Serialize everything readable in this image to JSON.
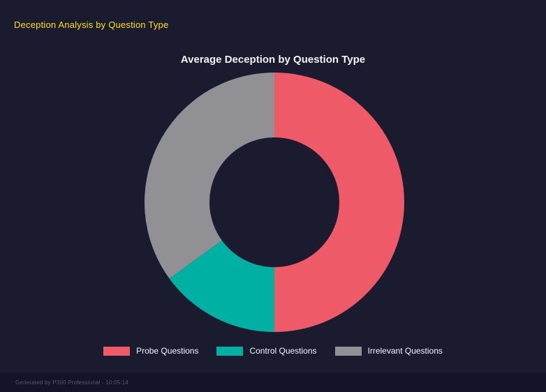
{
  "page": {
    "header": "Deception Analysis by Question Type",
    "footer": "Generated by P300 Professional - 10:05:14"
  },
  "colors": {
    "background": "#1a1b2e",
    "header_text": "#ffe100",
    "title_text": "#f2f3f6",
    "footer_text": "#565a70",
    "slice_probe": "#ee5a68",
    "slice_control": "#00b0a3",
    "slice_irrelevant": "#909095"
  },
  "chart_data": {
    "type": "pie",
    "variant": "donut",
    "title": "Average Deception by Question Type",
    "categories": [
      "Probe Questions",
      "Control Questions",
      "Irrelevant Questions"
    ],
    "values": [
      50,
      15,
      35
    ],
    "unit": "percent of total (estimated from arc angles)",
    "colors": [
      "#ee5a68",
      "#00b0a3",
      "#909095"
    ],
    "start_angle_deg": 0,
    "direction": "clockwise",
    "inner_radius_ratio": 0.5,
    "legend_position": "bottom",
    "grid": false
  }
}
